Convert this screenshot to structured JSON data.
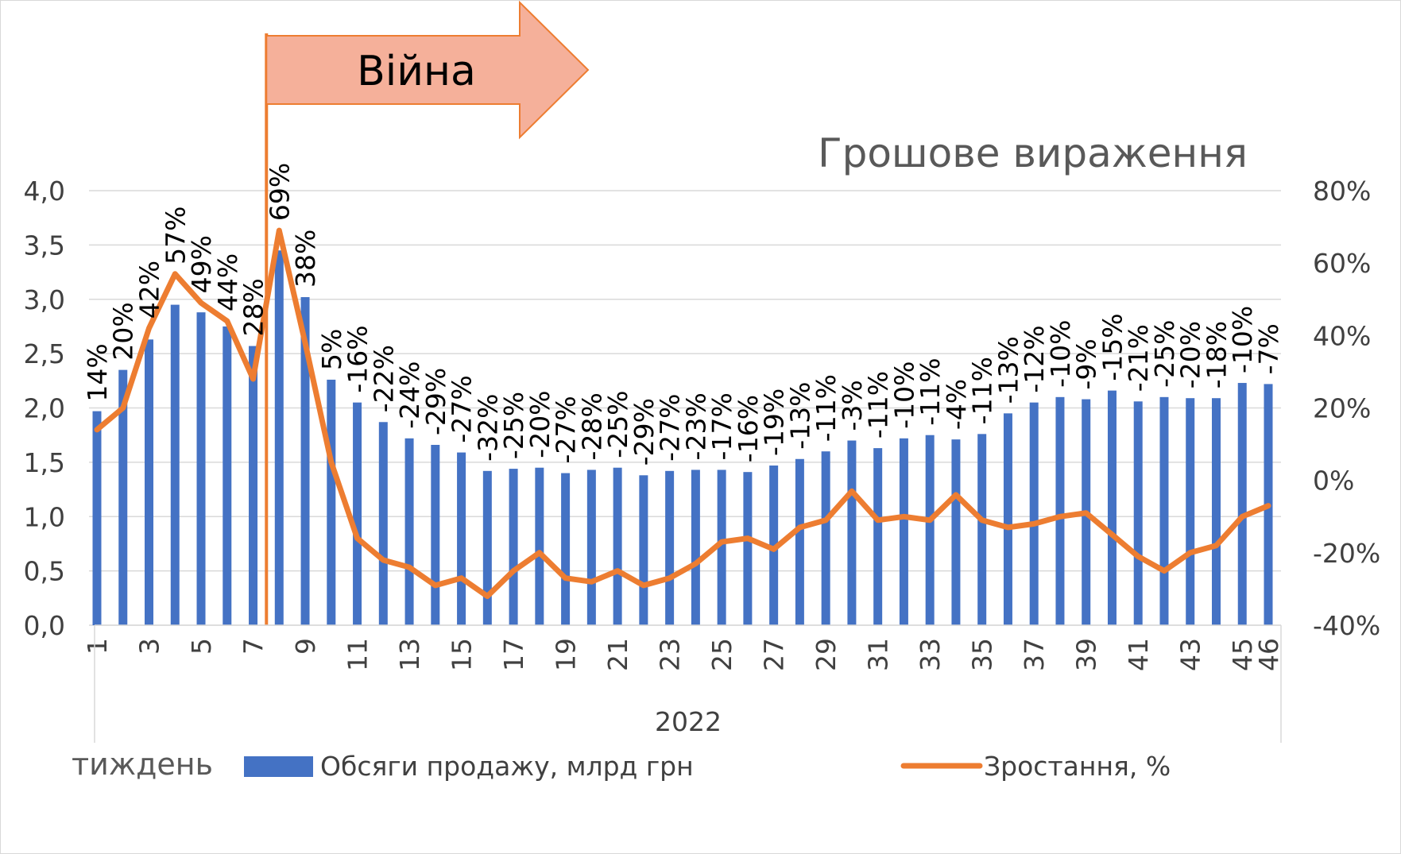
{
  "chart_data": {
    "type": "bar",
    "title": "Грошове вираження",
    "annotation": "Війна",
    "war_week": 8,
    "x_group_label": "2022",
    "x_axis_name": "тиждень",
    "categories": [
      "1",
      "2",
      "3",
      "4",
      "5",
      "6",
      "7",
      "8",
      "9",
      "10",
      "11",
      "12",
      "13",
      "14",
      "15",
      "16",
      "17",
      "18",
      "19",
      "20",
      "21",
      "22",
      "23",
      "24",
      "25",
      "26",
      "27",
      "28",
      "29",
      "30",
      "31",
      "32",
      "33",
      "34",
      "35",
      "36",
      "37",
      "38",
      "39",
      "40",
      "41",
      "42",
      "43",
      "44",
      "45",
      "46"
    ],
    "x_tick_labels": [
      "1",
      "3",
      "5",
      "7",
      "9",
      "11",
      "13",
      "15",
      "17",
      "19",
      "21",
      "23",
      "25",
      "27",
      "29",
      "31",
      "33",
      "35",
      "37",
      "39",
      "41",
      "43",
      "45",
      "46"
    ],
    "y_left": {
      "min": 0,
      "max": 4,
      "ticks": [
        "0,0",
        "0,5",
        "1,0",
        "1,5",
        "2,0",
        "2,5",
        "3,0",
        "3,5",
        "4,0"
      ]
    },
    "y_right": {
      "min": -40,
      "max": 80,
      "ticks": [
        "-40%",
        "-20%",
        "0%",
        "20%",
        "40%",
        "60%",
        "80%"
      ]
    },
    "grid": true,
    "legend_position": "bottom",
    "series": [
      {
        "name": "Обсяги продажу, млрд грн",
        "type": "bar",
        "color": "#4472c4",
        "axis": "left",
        "values": [
          1.97,
          2.35,
          2.63,
          2.95,
          2.88,
          2.75,
          2.57,
          3.45,
          3.02,
          2.26,
          2.05,
          1.87,
          1.72,
          1.66,
          1.59,
          1.42,
          1.44,
          1.45,
          1.4,
          1.43,
          1.45,
          1.38,
          1.42,
          1.43,
          1.43,
          1.41,
          1.47,
          1.53,
          1.6,
          1.7,
          1.63,
          1.72,
          1.75,
          1.71,
          1.76,
          1.95,
          2.05,
          2.1,
          2.08,
          2.16,
          2.06,
          2.1,
          2.09,
          2.09,
          2.23,
          2.22
        ]
      },
      {
        "name": "Зростання, %",
        "type": "line",
        "color": "#ed7d31",
        "axis": "right",
        "values": [
          14,
          20,
          42,
          57,
          49,
          44,
          28,
          69,
          38,
          5,
          -16,
          -22,
          -24,
          -29,
          -27,
          -32,
          -25,
          -20,
          -27,
          -28,
          -25,
          -29,
          -27,
          -23,
          -17,
          -16,
          -19,
          -13,
          -11,
          -3,
          -11,
          -10,
          -11,
          -4,
          -11,
          -13,
          -12,
          -10,
          -9,
          -15,
          -21,
          -25,
          -20,
          -18,
          -10,
          -7
        ],
        "labels": [
          "14%",
          "20%",
          "42%",
          "57%",
          "49%",
          "44%",
          "28%",
          "69%",
          "38%",
          "5%",
          "-16%",
          "-22%",
          "-24%",
          "-29%",
          "-27%",
          "-32%",
          "-25%",
          "-20%",
          "-27%",
          "-28%",
          "-25%",
          "-29%",
          "-27%",
          "-23%",
          "-17%",
          "-16%",
          "-19%",
          "-13%",
          "-11%",
          "-3%",
          "-11%",
          "-10%",
          "-11%",
          "-4%",
          "-11%",
          "-13%",
          "-12%",
          "-10%",
          "-9%",
          "-15%",
          "-21%",
          "-25%",
          "-20%",
          "-18%",
          "-10%",
          "-7%"
        ]
      }
    ]
  }
}
